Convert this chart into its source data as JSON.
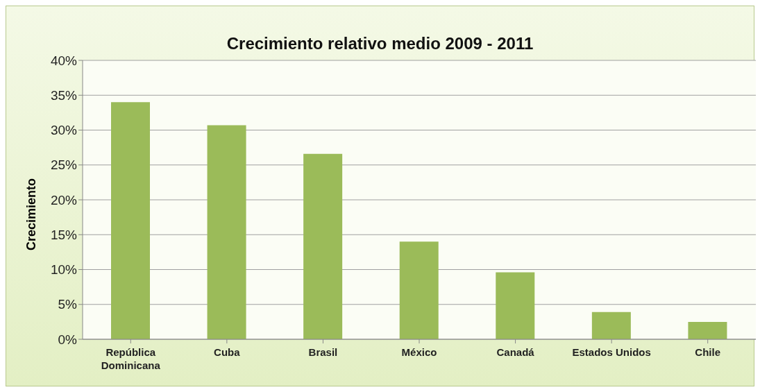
{
  "chart_data": {
    "type": "bar",
    "title": "Crecimiento relativo medio 2009 - 2011",
    "ylabel": "Crecimiento",
    "categories": [
      "República Dominicana",
      "Cuba",
      "Brasil",
      "México",
      "Canadá",
      "Estados Unidos",
      "Chile"
    ],
    "values": [
      34,
      30.7,
      26.6,
      14,
      9.6,
      3.9,
      2.5
    ],
    "color": "#9bbb59",
    "ylim": [
      0,
      40
    ],
    "yticks": [
      {
        "value": 0,
        "label": "0%"
      },
      {
        "value": 5,
        "label": "5%"
      },
      {
        "value": 10,
        "label": "10%"
      },
      {
        "value": 15,
        "label": "15%"
      },
      {
        "value": 20,
        "label": "20%"
      },
      {
        "value": 25,
        "label": "25%"
      },
      {
        "value": 30,
        "label": "30%"
      },
      {
        "value": 35,
        "label": "35%"
      },
      {
        "value": 40,
        "label": "40%"
      }
    ],
    "grid": "y",
    "legend": false
  }
}
